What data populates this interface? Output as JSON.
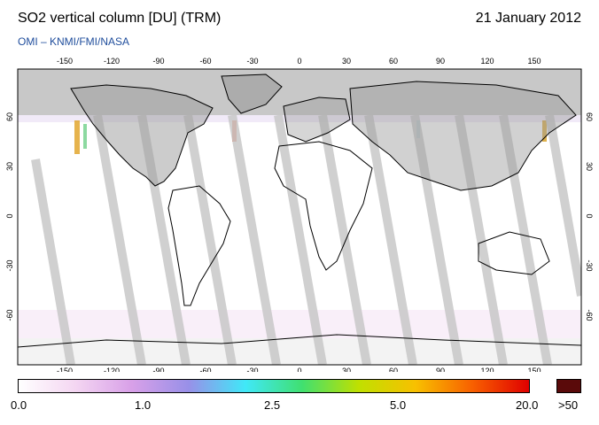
{
  "header": {
    "title": "SO2 vertical column [DU] (TRM)",
    "date": "21 January 2012",
    "source": "OMI  –  KNMI/FMI/NASA"
  },
  "map": {
    "projection": "equirectangular",
    "lon_ticks": [
      "-150",
      "-120",
      "-90",
      "-60",
      "-30",
      "0",
      "30",
      "60",
      "90",
      "120",
      "150"
    ],
    "lat_ticks": [
      "60",
      "30",
      "0",
      "-30",
      "-60"
    ],
    "colors": {
      "land_outline": "#000000",
      "polar_night": "#c8c8c8",
      "no_data_swath": "#c8c8c8",
      "land_gray": "#999999",
      "background": "#ffffff"
    }
  },
  "colorbar": {
    "labels": [
      "0.0",
      "1.0",
      "2.5",
      "5.0",
      "20.0",
      ">50"
    ],
    "colors": [
      "#ffffff",
      "#f4d6f2",
      "#d8a0e8",
      "#9890e8",
      "#40e8f8",
      "#40e070",
      "#c0e000",
      "#f8c000",
      "#f86000",
      "#e00000"
    ],
    "over_color": "#5a0a0a"
  }
}
